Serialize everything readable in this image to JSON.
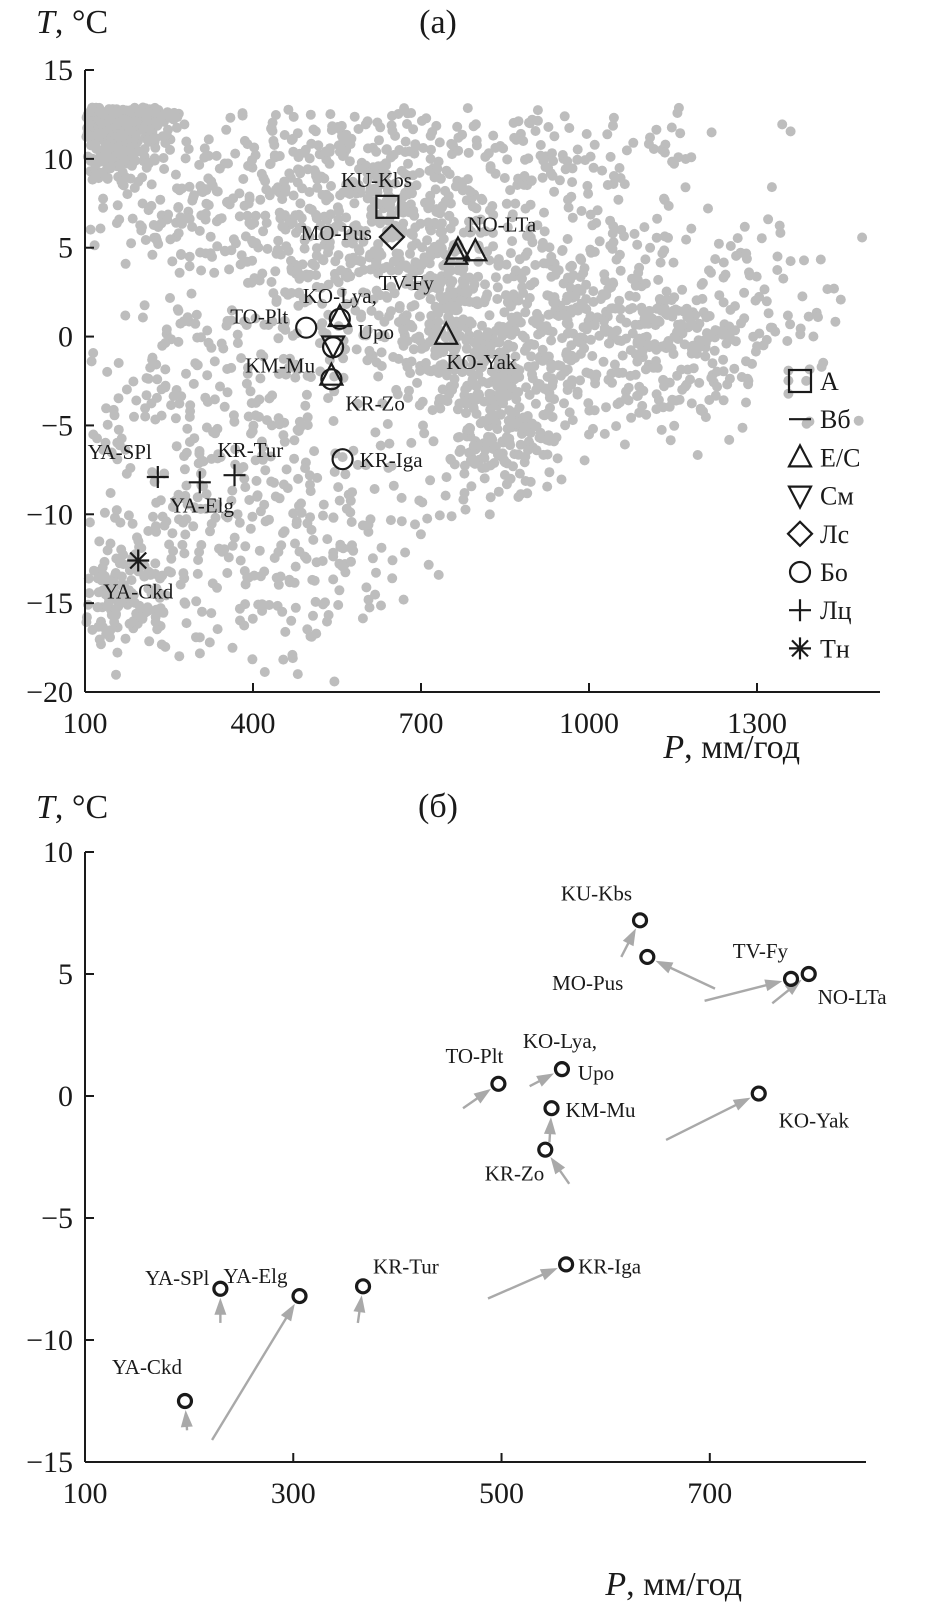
{
  "chart_data": [
    {
      "id": "a",
      "type": "scatter",
      "panel_label": "(a)",
      "ylabel_var": "T",
      "ylabel_unit": ", °C",
      "xlabel_var": "P",
      "xlabel_unit": ", мм/год",
      "xlim": [
        100,
        1500
      ],
      "ylim": [
        -20,
        15
      ],
      "xticks": [
        100,
        400,
        700,
        1000,
        1300
      ],
      "yticks": [
        15,
        10,
        5,
        0,
        -5,
        -10,
        -15,
        -20
      ],
      "ytick_labels": [
        "15",
        "10",
        "5",
        "0",
        "−5",
        "−10",
        "−15",
        "−20"
      ],
      "cloud_color": "#bdbdbd",
      "legend": [
        {
          "symbol": "square",
          "label": "А"
        },
        {
          "symbol": "dash",
          "label": "Вб"
        },
        {
          "symbol": "triangle-up",
          "label": "Е/С"
        },
        {
          "symbol": "triangle-down",
          "label": "См"
        },
        {
          "symbol": "diamond",
          "label": "Лс"
        },
        {
          "symbol": "circle",
          "label": "Бо"
        },
        {
          "symbol": "plus",
          "label": "Лц"
        },
        {
          "symbol": "asterisk",
          "label": "Тн"
        }
      ],
      "points": [
        {
          "label": "KU-Kbs",
          "symbol": "square",
          "x": 640,
          "y": 7.3
        },
        {
          "label": "MO-Pus",
          "symbol": "diamond",
          "x": 648,
          "y": 5.6
        },
        {
          "label": "NO-LTa",
          "symbol": "triangle-up",
          "x": 797,
          "y": 4.8
        },
        {
          "label": "TV-Fy",
          "symbol": "triangle-up",
          "x": 763,
          "y": 4.6
        },
        {
          "label": "TV-Fy",
          "symbol": "triangle-up",
          "x": 766,
          "y": 4.9
        },
        {
          "label": "KO-Lya,",
          "label2": "Upo",
          "symbol": "triangle-up",
          "x": 555,
          "y": 1.1
        },
        {
          "label": "KO-Lya,",
          "label2": "Upo",
          "symbol": "circle",
          "x": 555,
          "y": 1.0
        },
        {
          "label": "TO-Plt",
          "symbol": "circle",
          "x": 495,
          "y": 0.5
        },
        {
          "label": "KO-Yak",
          "symbol": "triangle-up",
          "x": 745,
          "y": 0.1
        },
        {
          "label": "KM-Mu",
          "symbol": "triangle-down",
          "x": 543,
          "y": -0.5
        },
        {
          "label": "KM-Mu",
          "symbol": "circle",
          "x": 543,
          "y": -0.6
        },
        {
          "label": "KR-Zo",
          "symbol": "triangle-up",
          "x": 540,
          "y": -2.2
        },
        {
          "label": "KR-Zo",
          "symbol": "circle",
          "x": 540,
          "y": -2.4
        },
        {
          "label": "KR-Iga",
          "symbol": "circle",
          "x": 560,
          "y": -6.9
        },
        {
          "label": "YA-SPl",
          "symbol": "plus",
          "x": 230,
          "y": -7.9
        },
        {
          "label": "YA-Elg",
          "symbol": "plus",
          "x": 305,
          "y": -8.2
        },
        {
          "label": "KR-Tur",
          "symbol": "plus",
          "x": 367,
          "y": -7.8
        },
        {
          "label": "YA-Ckd",
          "symbol": "asterisk",
          "x": 195,
          "y": -12.6
        }
      ]
    },
    {
      "id": "b",
      "type": "scatter",
      "panel_label": "(б)",
      "ylabel_var": "T",
      "ylabel_unit": ", °C",
      "xlabel_var": "P",
      "xlabel_unit": ", мм/год",
      "xlim": [
        100,
        850
      ],
      "ylim": [
        -15,
        10
      ],
      "xticks": [
        100,
        300,
        500,
        700
      ],
      "yticks": [
        10,
        5,
        0,
        -5,
        -10,
        -15
      ],
      "ytick_labels": [
        "10",
        "5",
        "0",
        "−5",
        "−10",
        "−15"
      ],
      "arrow_color": "#a9a9a9",
      "points": [
        {
          "label": "KU-Kbs",
          "x": 633,
          "y": 7.2,
          "from_x": 615,
          "y_from": 5.7
        },
        {
          "label": "MO-Pus",
          "x": 640,
          "y": 5.7,
          "from_x": 705,
          "y_from": 4.4
        },
        {
          "label": "TV-Fy",
          "x": 778,
          "y": 4.8,
          "from_x": 695,
          "y_from": 3.9
        },
        {
          "label": "NO-LTa",
          "x": 795,
          "y": 5.0,
          "from_x": 760,
          "y_from": 3.8
        },
        {
          "label": "TO-Plt",
          "x": 497,
          "y": 0.5,
          "from_x": 463,
          "y_from": -0.5
        },
        {
          "label": "KO-Lya,",
          "label2": "Upo",
          "x": 558,
          "y": 1.1,
          "from_x": 527,
          "y_from": 0.4
        },
        {
          "label": "KM-Mu",
          "x": 548,
          "y": -0.5,
          "from_x": 546,
          "y_from": -1.9
        },
        {
          "label": "KO-Yak",
          "x": 747,
          "y": 0.1,
          "from_x": 658,
          "y_from": -1.8
        },
        {
          "label": "KR-Zo",
          "x": 542,
          "y": -2.2,
          "from_x": 565,
          "y_from": -3.6
        },
        {
          "label": "KR-Iga",
          "x": 562,
          "y": -6.9,
          "from_x": 487,
          "y_from": -8.3
        },
        {
          "label": "YA-SPl",
          "x": 230,
          "y": -7.9,
          "from_x": 230,
          "y_from": -9.3
        },
        {
          "label": "YA-Elg",
          "x": 306,
          "y": -8.2,
          "from_x": 222,
          "y_from": -14.1
        },
        {
          "label": "KR-Tur",
          "x": 367,
          "y": -7.8,
          "from_x": 362,
          "y_from": -9.3
        },
        {
          "label": "YA-Ckd",
          "x": 196,
          "y": -12.5,
          "from_x": 198,
          "y_from": -13.7
        }
      ]
    }
  ]
}
